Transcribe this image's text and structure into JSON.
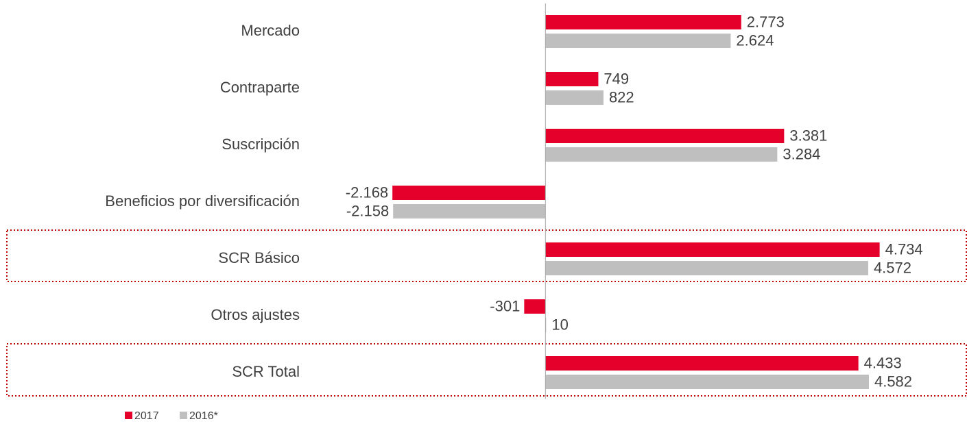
{
  "chart_data": {
    "type": "bar",
    "orientation": "horizontal",
    "categories": [
      "Mercado",
      "Contraparte",
      "Suscripción",
      "Beneficios por diversificación",
      "SCR Básico",
      "Otros ajustes",
      "SCR Total"
    ],
    "series": [
      {
        "name": "2017",
        "color": "#e4002b",
        "values": [
          2773,
          749,
          3381,
          -2168,
          4734,
          -301,
          4433
        ],
        "value_labels": [
          "2.773",
          "749",
          "3.381",
          "-2.168",
          "4.734",
          "-301",
          "4.433"
        ]
      },
      {
        "name": "2016*",
        "color": "#bfbfbf",
        "values": [
          2624,
          822,
          3284,
          -2158,
          4572,
          10,
          4582
        ],
        "value_labels": [
          "2.624",
          "822",
          "3.284",
          "-2.158",
          "4.572",
          "10",
          "4.582"
        ]
      }
    ],
    "xlim": [
      -2500,
      5000
    ],
    "legend": "bottom-left"
  }
}
